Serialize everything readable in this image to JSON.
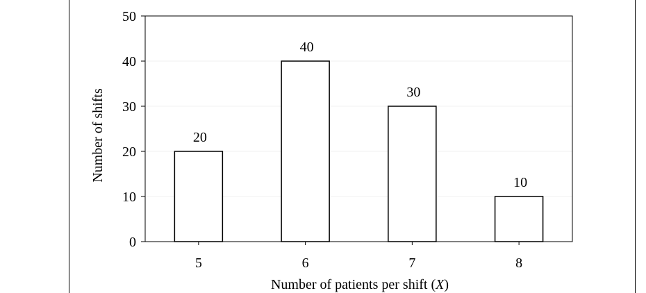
{
  "chart_data": {
    "type": "bar",
    "categories": [
      "5",
      "6",
      "7",
      "8"
    ],
    "values": [
      20,
      40,
      30,
      10
    ],
    "data_labels": [
      "20",
      "40",
      "30",
      "10"
    ],
    "xlabel_prefix": "Number of patients per shift (",
    "xlabel_var": "X",
    "xlabel_suffix": ")",
    "ylabel": "Number of shifts",
    "ylim": [
      0,
      50
    ],
    "yticks": [
      0,
      10,
      20,
      30,
      40,
      50
    ],
    "grid": true,
    "bar_fill": "#ffffff",
    "bar_stroke": "#000000",
    "grid_color": "#f0f0f0"
  }
}
